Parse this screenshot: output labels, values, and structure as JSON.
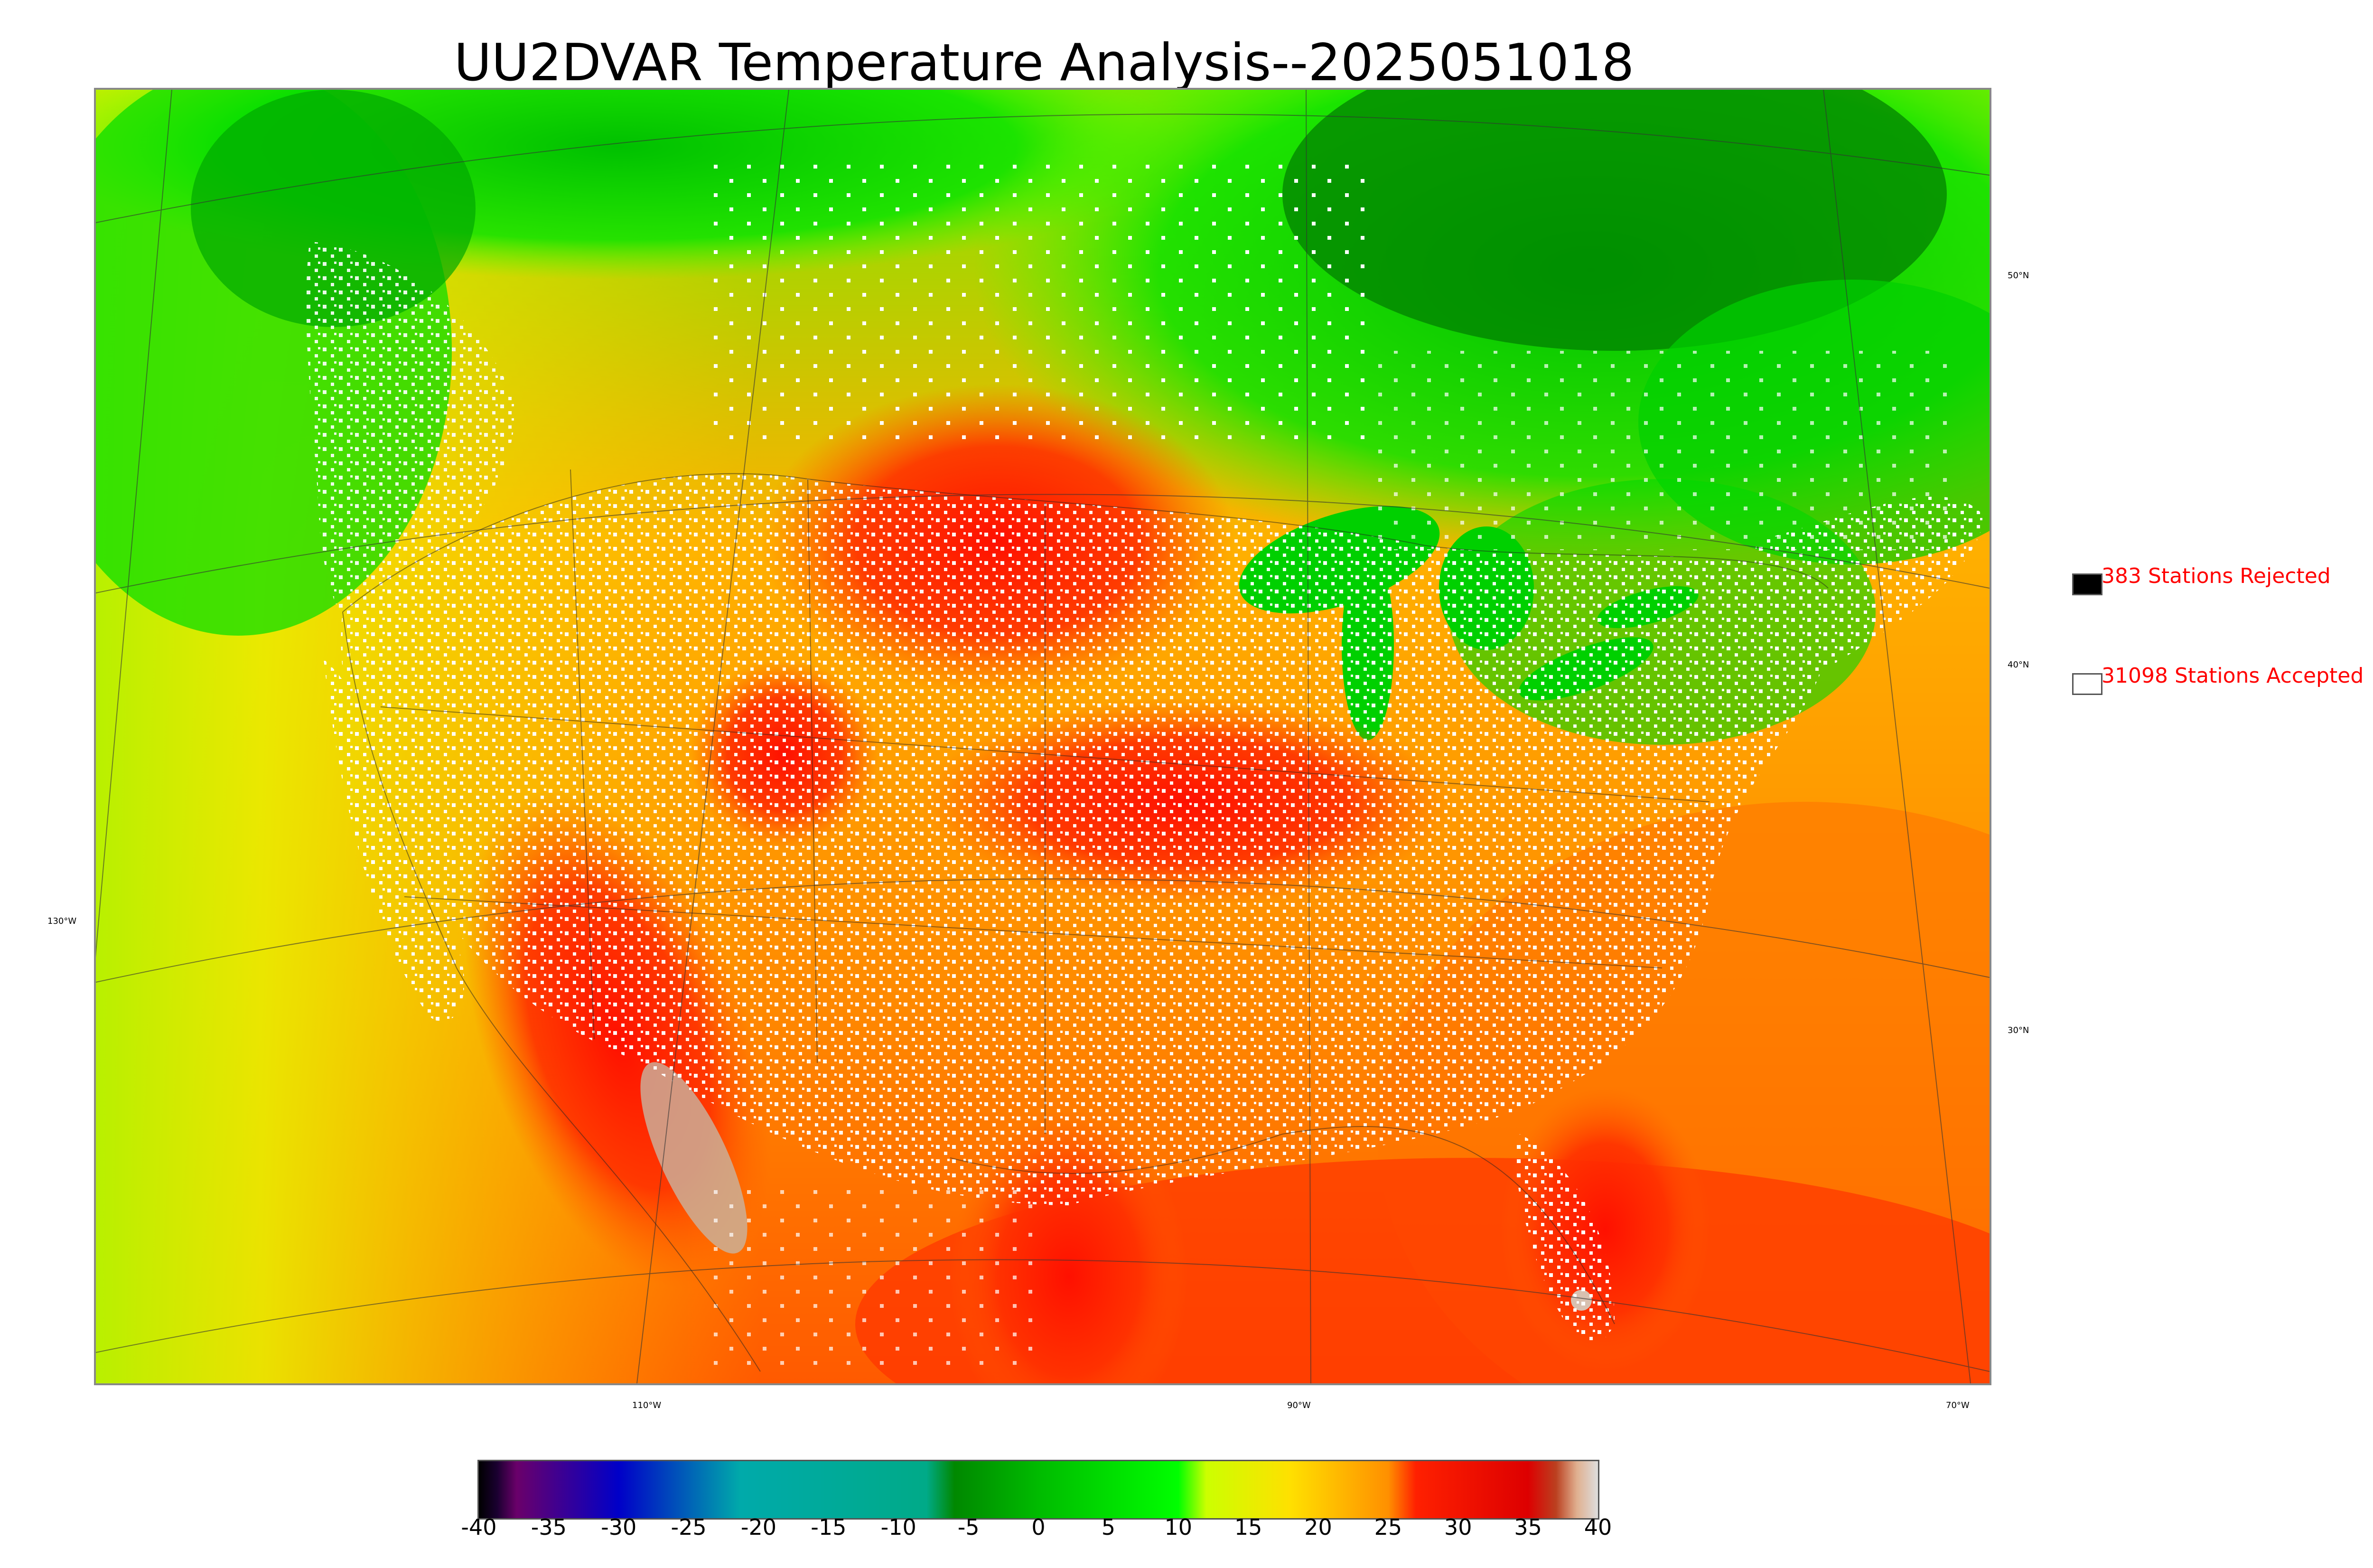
{
  "title": "UU2DVAR Temperature Analysis--2025051018",
  "map": {
    "lat_labels": [
      "50°N",
      "40°N",
      "30°N"
    ],
    "lon_labels": [
      "130°W",
      "110°W",
      "90°W",
      "70°W"
    ],
    "accent_colors": {
      "cold": "#008000",
      "cool": "#00e400",
      "mild": "#d8f000",
      "warm": "#ffd000",
      "hot": "#ff9000",
      "very_hot": "#ff1000",
      "station": "#ffffff"
    }
  },
  "legend": {
    "rejected_label": "383 Stations Rejected",
    "accepted_label": "31098 Stations Accepted",
    "rejected_color": "#000000",
    "accepted_color": "#ffffff"
  },
  "colorbar": {
    "ticks": [
      "-40",
      "-35",
      "-30",
      "-25",
      "-20",
      "-15",
      "-10",
      "-5",
      "0",
      "5",
      "10",
      "15",
      "20",
      "25",
      "30",
      "35",
      "40"
    ],
    "range": [
      -40,
      40
    ],
    "stops": [
      {
        "value": -40,
        "color": "#000000"
      },
      {
        "value": -38.7,
        "color": "#1a0030"
      },
      {
        "value": -37.3,
        "color": "#6a006a"
      },
      {
        "value": -30,
        "color": "#0000c8"
      },
      {
        "value": -21.3,
        "color": "#00aaaa"
      },
      {
        "value": -8,
        "color": "#00aa88"
      },
      {
        "value": -6,
        "color": "#008800"
      },
      {
        "value": 0,
        "color": "#00bb00"
      },
      {
        "value": 10,
        "color": "#00ff00"
      },
      {
        "value": 12,
        "color": "#ccff00"
      },
      {
        "value": 18,
        "color": "#ffe000"
      },
      {
        "value": 25,
        "color": "#ff9000"
      },
      {
        "value": 27,
        "color": "#ff2000"
      },
      {
        "value": 35,
        "color": "#dd0000"
      },
      {
        "value": 37,
        "color": "#bb4020"
      },
      {
        "value": 38.5,
        "color": "#e0b090"
      },
      {
        "value": 40,
        "color": "#dddddd"
      }
    ]
  }
}
